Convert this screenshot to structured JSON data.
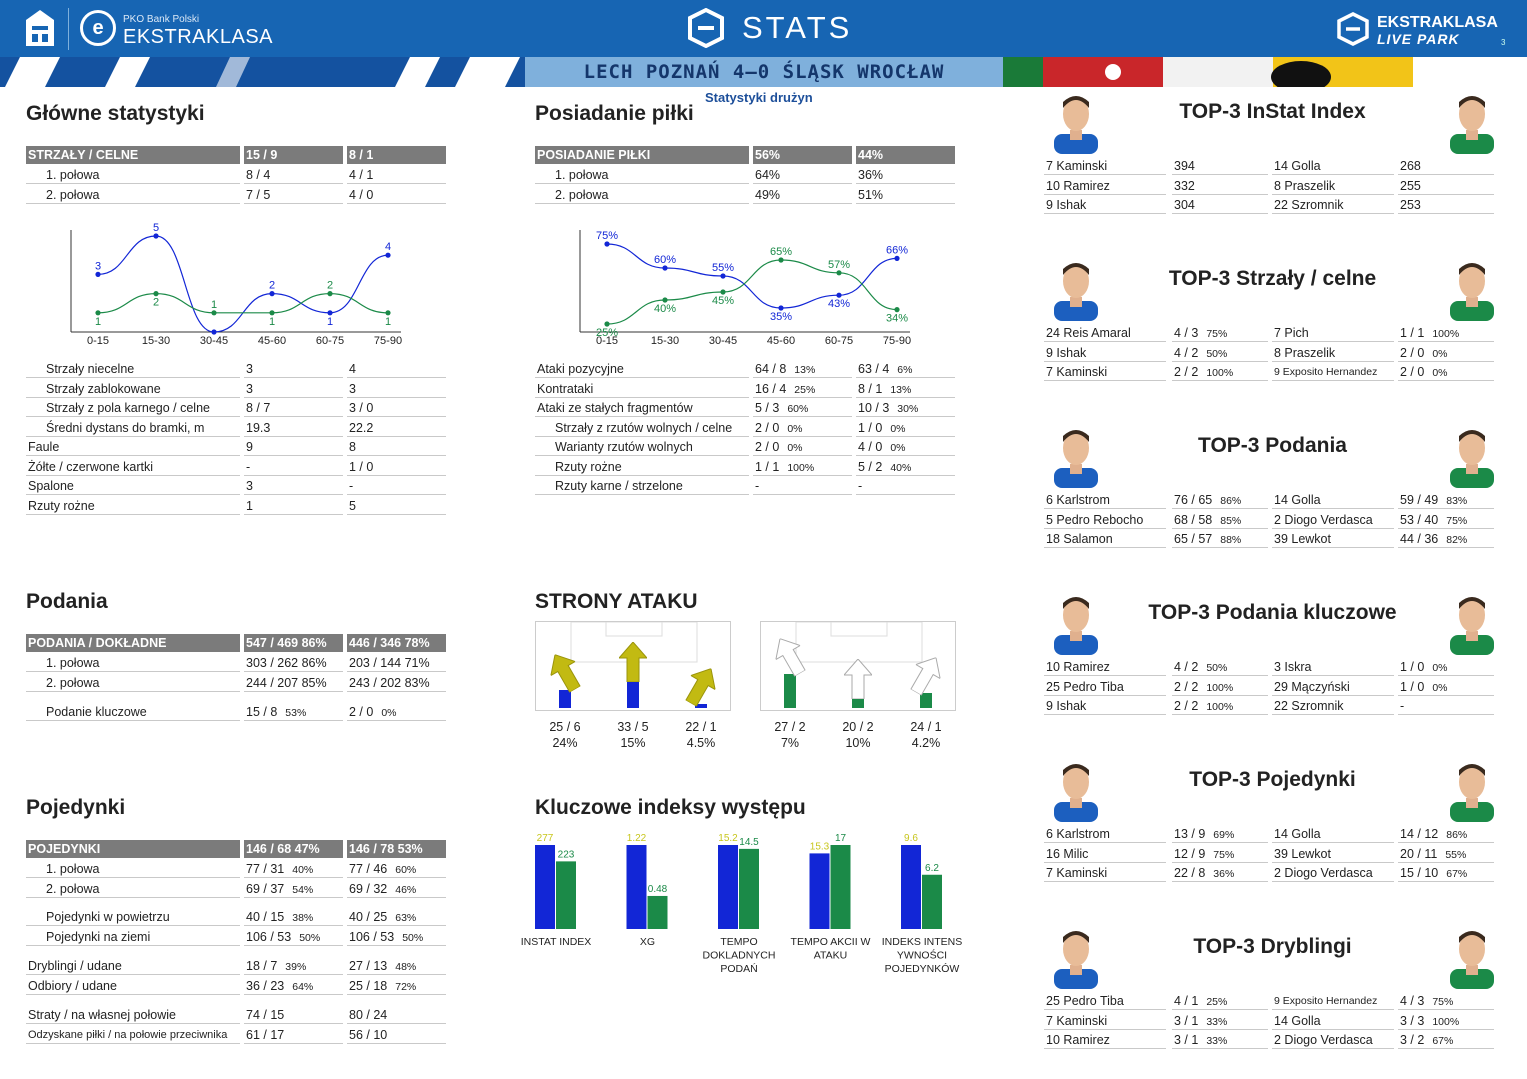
{
  "header": {
    "bank": "PKO Bank Polski",
    "league": "EKSTRAKLASA",
    "center_title": "STATS",
    "right_title_1": "EKSTRAKLASA",
    "right_title_2": "LIVE PARK",
    "page_number": "3"
  },
  "match": {
    "title": "LECH POZNAŃ 4–0 ŚLĄSK WROCŁAW",
    "subtitle": "Statystyki drużyn"
  },
  "colors": {
    "home": "#1226d6",
    "away": "#1b8a48",
    "yellow": "#c8c61d",
    "grey_header": "#7b7b7b",
    "brand_blue": "#1765b3"
  },
  "main_stats": {
    "title": "Główne statystyki",
    "header": [
      "STRZAŁY / CELNE",
      "15 / 9",
      "8 / 1"
    ],
    "halves": [
      [
        "1. połowa",
        "8 / 4",
        "4 / 1"
      ],
      [
        "2. połowa",
        "7 / 5",
        "4 / 0"
      ]
    ],
    "rows": [
      [
        "Strzały niecelne",
        "3",
        "4"
      ],
      [
        "Strzały zablokowane",
        "3",
        "3"
      ],
      [
        "Strzały z pola karnego / celne",
        "8 / 7",
        "3 / 0"
      ],
      [
        "Średni dystans do bramki, m",
        "19.3",
        "22.2"
      ],
      [
        "Faule",
        "9",
        "8"
      ],
      [
        "Żółte / czerwone kartki",
        "-",
        "1 / 0"
      ],
      [
        "Spalone",
        "3",
        "-"
      ],
      [
        "Rzuty rożne",
        "1",
        "5"
      ]
    ]
  },
  "shots_chart": {
    "chart_data": {
      "type": "line",
      "categories": [
        "0-15",
        "15-30",
        "30-45",
        "45-60",
        "60-75",
        "75-90"
      ],
      "series": [
        {
          "values": [
            3,
            5,
            0,
            2,
            1,
            4
          ],
          "labels": [
            "3",
            "5",
            "",
            "2",
            "1",
            "4"
          ],
          "color": "#1226d6"
        },
        {
          "values": [
            1,
            2,
            1,
            1,
            2,
            1
          ],
          "labels": [
            "1",
            "2",
            "1",
            "1",
            "2",
            "1"
          ],
          "color": "#1b8a48"
        }
      ],
      "ylim": [
        0,
        5
      ]
    }
  },
  "possession": {
    "title": "Posiadanie piłki",
    "header": [
      "POSIADANIE PIŁKI",
      "56%",
      "44%"
    ],
    "halves": [
      [
        "1. połowa",
        "64%",
        "36%"
      ],
      [
        "2. połowa",
        "49%",
        "51%"
      ]
    ],
    "rows": [
      [
        "Ataki pozycyjne",
        "64 / 8",
        "13%",
        "63 / 4",
        "6%"
      ],
      [
        "Kontrataki",
        "16 / 4",
        "25%",
        "8 / 1",
        "13%"
      ],
      [
        "Ataki ze stałych fragmentów",
        "5 / 3",
        "60%",
        "10 / 3",
        "30%"
      ],
      [
        "Strzały z rzutów wolnych / celne",
        "2 / 0",
        "0%",
        "1 / 0",
        "0%"
      ],
      [
        "Warianty rzutów wolnych",
        "2 / 0",
        "0%",
        "4 / 0",
        "0%"
      ],
      [
        "Rzuty rożne",
        "1 / 1",
        "100%",
        "5 / 2",
        "40%"
      ],
      [
        "Rzuty karne / strzelone",
        "-",
        "",
        "-",
        ""
      ]
    ]
  },
  "possession_chart": {
    "chart_data": {
      "type": "line",
      "categories": [
        "0-15",
        "15-30",
        "30-45",
        "45-60",
        "60-75",
        "75-90"
      ],
      "series": [
        {
          "values": [
            75,
            60,
            55,
            35,
            43,
            66
          ],
          "labels": [
            "75%",
            "60%",
            "55%",
            "35%",
            "43%",
            "66%"
          ],
          "color": "#1226d6"
        },
        {
          "values": [
            25,
            40,
            45,
            65,
            57,
            34
          ],
          "labels": [
            "25%",
            "40%",
            "45%",
            "65%",
            "57%",
            "34%"
          ],
          "color": "#1b8a48"
        }
      ],
      "ylim": [
        20,
        80
      ]
    }
  },
  "passes": {
    "title": "Podania",
    "header": [
      "PODANIA / DOKŁADNE",
      "547 / 469 86%",
      "446 / 346 78%"
    ],
    "halves": [
      [
        "1. połowa",
        "303 / 262 86%",
        "203 / 144 71%"
      ],
      [
        "2. połowa",
        "244 / 207 85%",
        "243 / 202 83%"
      ]
    ],
    "key": [
      "Podanie kluczowe",
      "15 / 8",
      "53%",
      "2 / 0",
      "0%"
    ]
  },
  "attack_sides": {
    "title": "STRONY ATAKU",
    "home": [
      {
        "v": "25 / 6",
        "p": "24%",
        "level": 0.24
      },
      {
        "v": "33 / 5",
        "p": "15%",
        "level": 0.4
      },
      {
        "v": "22 / 1",
        "p": "4.5%",
        "level": 0.0
      }
    ],
    "away": [
      {
        "v": "27 / 2",
        "p": "7%",
        "level": 0.5
      },
      {
        "v": "20 / 2",
        "p": "10%",
        "level": 0.12
      },
      {
        "v": "24 / 1",
        "p": "4.2%",
        "level": 0.18
      }
    ]
  },
  "duels": {
    "title": "Pojedynki",
    "header": [
      "POJEDYNKI",
      "146 / 68 47%",
      "146 / 78 53%"
    ],
    "rows": [
      [
        "1. połowa",
        "77 / 31",
        "40%",
        "77 / 46",
        "60%",
        true
      ],
      [
        "2. połowa",
        "69 / 37",
        "54%",
        "69 / 32",
        "46%",
        true
      ],
      [
        "Pojedynki w powietrzu",
        "40 / 15",
        "38%",
        "40 / 25",
        "63%",
        true
      ],
      [
        "Pojedynki na ziemi",
        "106 / 53",
        "50%",
        "106 / 53",
        "50%",
        true
      ],
      [
        "Dryblingi / udane",
        "18 / 7",
        "39%",
        "27 / 13",
        "48%",
        false
      ],
      [
        "Odbiory / udane",
        "36 / 23",
        "64%",
        "25 / 18",
        "72%",
        false
      ],
      [
        "Straty / na własnej połowie",
        "74 / 15",
        "",
        "80 / 24",
        "",
        false
      ],
      [
        "Odzyskane piłki / na połowie przeciwnika",
        "61 / 17",
        "",
        "56 / 10",
        "",
        false
      ]
    ]
  },
  "key_indices": {
    "title": "Kluczowe indeksy występu",
    "chart_data": {
      "type": "bar",
      "categories": [
        "INSTAT INDEX",
        "XG",
        "TEMPO DOKLADNYCH PODAŃ",
        "TEMPO AKCII W ATAKU",
        "INDEKS INTENS YWNOŚCI POJEDYNKÓW"
      ],
      "series": [
        {
          "values": [
            277,
            1.22,
            15.2,
            15.3,
            9.6
          ],
          "labels": [
            "277",
            "1.22",
            "15.2",
            "15.3",
            "9.6"
          ]
        },
        {
          "values": [
            223,
            0.48,
            14.5,
            17,
            6.2
          ],
          "labels": [
            "223",
            "0.48",
            "14.5",
            "17",
            "6.2"
          ]
        }
      ]
    },
    "cat_lines": [
      [
        "INSTAT INDEX"
      ],
      [
        "XG"
      ],
      [
        "TEMPO",
        "DOKLADNYCH",
        "PODAŃ"
      ],
      [
        "TEMPO AKCII W",
        "ATAKU"
      ],
      [
        "INDEKS INTENS",
        "YWNOŚCI",
        "POJEDYNKÓW"
      ]
    ]
  },
  "top3": [
    {
      "title": "TOP-3 InStat Index",
      "rows": [
        [
          "7  Kaminski",
          "394",
          "",
          "14 Golla",
          "268",
          ""
        ],
        [
          "10 Ramirez",
          "332",
          "",
          "8  Praszelik",
          "255",
          ""
        ],
        [
          "9  Ishak",
          "304",
          "",
          "22 Szromnik",
          "253",
          ""
        ]
      ]
    },
    {
      "title": "TOP-3 Strzały / celne",
      "rows": [
        [
          "24 Reis Amaral",
          "4 / 3",
          "75%",
          "7  Pich",
          "1 / 1",
          "100%"
        ],
        [
          "9  Ishak",
          "4 / 2",
          "50%",
          "8  Praszelik",
          "2 / 0",
          "0%"
        ],
        [
          "7  Kaminski",
          "2 / 2",
          "100%",
          "9  Exposito Hernandez",
          "2 / 0",
          "0%"
        ]
      ]
    },
    {
      "title": "TOP-3 Podania",
      "rows": [
        [
          "6  Karlstrom",
          "76 / 65",
          "86%",
          "14 Golla",
          "59 / 49",
          "83%"
        ],
        [
          "5  Pedro Rebocho",
          "68 / 58",
          "85%",
          "2  Diogo Verdasca",
          "53 / 40",
          "75%"
        ],
        [
          "18 Salamon",
          "65 / 57",
          "88%",
          "39 Lewkot",
          "44 / 36",
          "82%"
        ]
      ]
    },
    {
      "title": "TOP-3 Podania kluczowe",
      "rows": [
        [
          "10 Ramirez",
          "4 / 2",
          "50%",
          "3  Iskra",
          "1 / 0",
          "0%"
        ],
        [
          "25 Pedro Tiba",
          "2 / 2",
          "100%",
          "29 Mączyński",
          "1 / 0",
          "0%"
        ],
        [
          "9  Ishak",
          "2 / 2",
          "100%",
          "22 Szromnik",
          "-",
          ""
        ]
      ]
    },
    {
      "title": "TOP-3 Pojedynki",
      "rows": [
        [
          "6  Karlstrom",
          "13 / 9",
          "69%",
          "14 Golla",
          "14 / 12",
          "86%"
        ],
        [
          "16 Milic",
          "12 / 9",
          "75%",
          "39 Lewkot",
          "20 / 11",
          "55%"
        ],
        [
          "7  Kaminski",
          "22 / 8",
          "36%",
          "2  Diogo Verdasca",
          "15 / 10",
          "67%"
        ]
      ]
    },
    {
      "title": "TOP-3 Dryblingi",
      "rows": [
        [
          "25 Pedro Tiba",
          "4 / 1",
          "25%",
          "9  Exposito Hernandez",
          "4 / 3",
          "75%"
        ],
        [
          "7  Kaminski",
          "3 / 1",
          "33%",
          "14 Golla",
          "3 / 3",
          "100%"
        ],
        [
          "10 Ramirez",
          "3 / 1",
          "33%",
          "2  Diogo Verdasca",
          "3 / 2",
          "67%"
        ]
      ]
    }
  ]
}
